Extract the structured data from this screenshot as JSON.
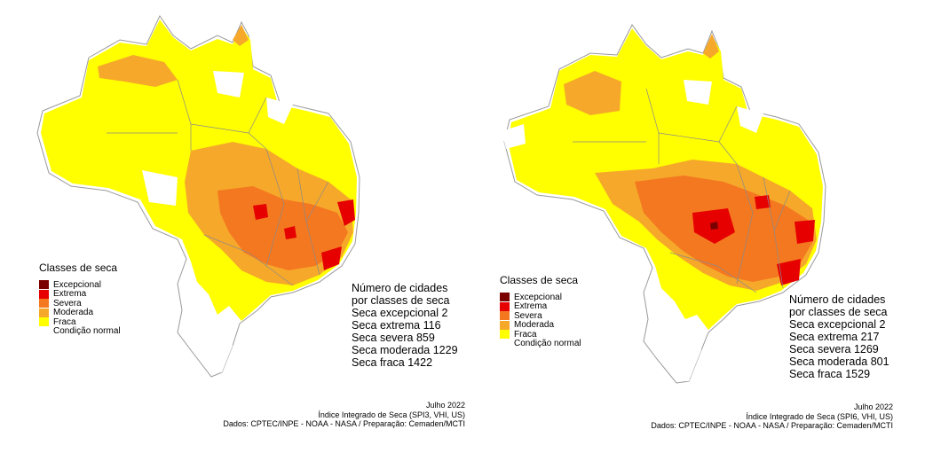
{
  "legend_classes": [
    {
      "label": "Excepcional",
      "color": "#7a0000"
    },
    {
      "label": "Extrema",
      "color": "#e60000"
    },
    {
      "label": "Severa",
      "color": "#f47820"
    },
    {
      "label": "Moderada",
      "color": "#f6a82a"
    },
    {
      "label": "Fraca",
      "color": "#ffff00"
    },
    {
      "label": "Condição normal",
      "color": "#ffffff"
    }
  ],
  "panels": [
    {
      "legend_title": "Classes de seca",
      "counts": {
        "heading1": "Número de cidades",
        "heading2": "por classes de seca",
        "excepcional": "Seca excepcional 2",
        "extrema": "Seca extrema  116",
        "severa": "Seca severa  859",
        "moderada": "Seca moderada 1229",
        "fraca": "Seca fraca  1422"
      },
      "footer": {
        "date": "Julho 2022",
        "index": "Índice Integrado de Seca (SPI3, VHI, US)",
        "source": "Dados: CPTEC/INPE - NOAA - NASA / Preparação: Cemaden/MCTI"
      }
    },
    {
      "legend_title": "Classes de seca",
      "counts": {
        "heading1": "Número de cidades",
        "heading2": "por classes de seca",
        "excepcional": "Seca excepcional 2",
        "extrema": "Seca extrema  217",
        "severa": "Seca severa  1269",
        "moderada": "Seca moderada 801",
        "fraca": "Seca fraca  1529"
      },
      "footer": {
        "date": "Julho 2022",
        "index": "Índice Integrado de Seca (SPI6, VHI, US)",
        "source": "Dados: CPTEC/INPE - NOAA - NASA / Preparação: Cemaden/MCTI"
      }
    }
  ]
}
